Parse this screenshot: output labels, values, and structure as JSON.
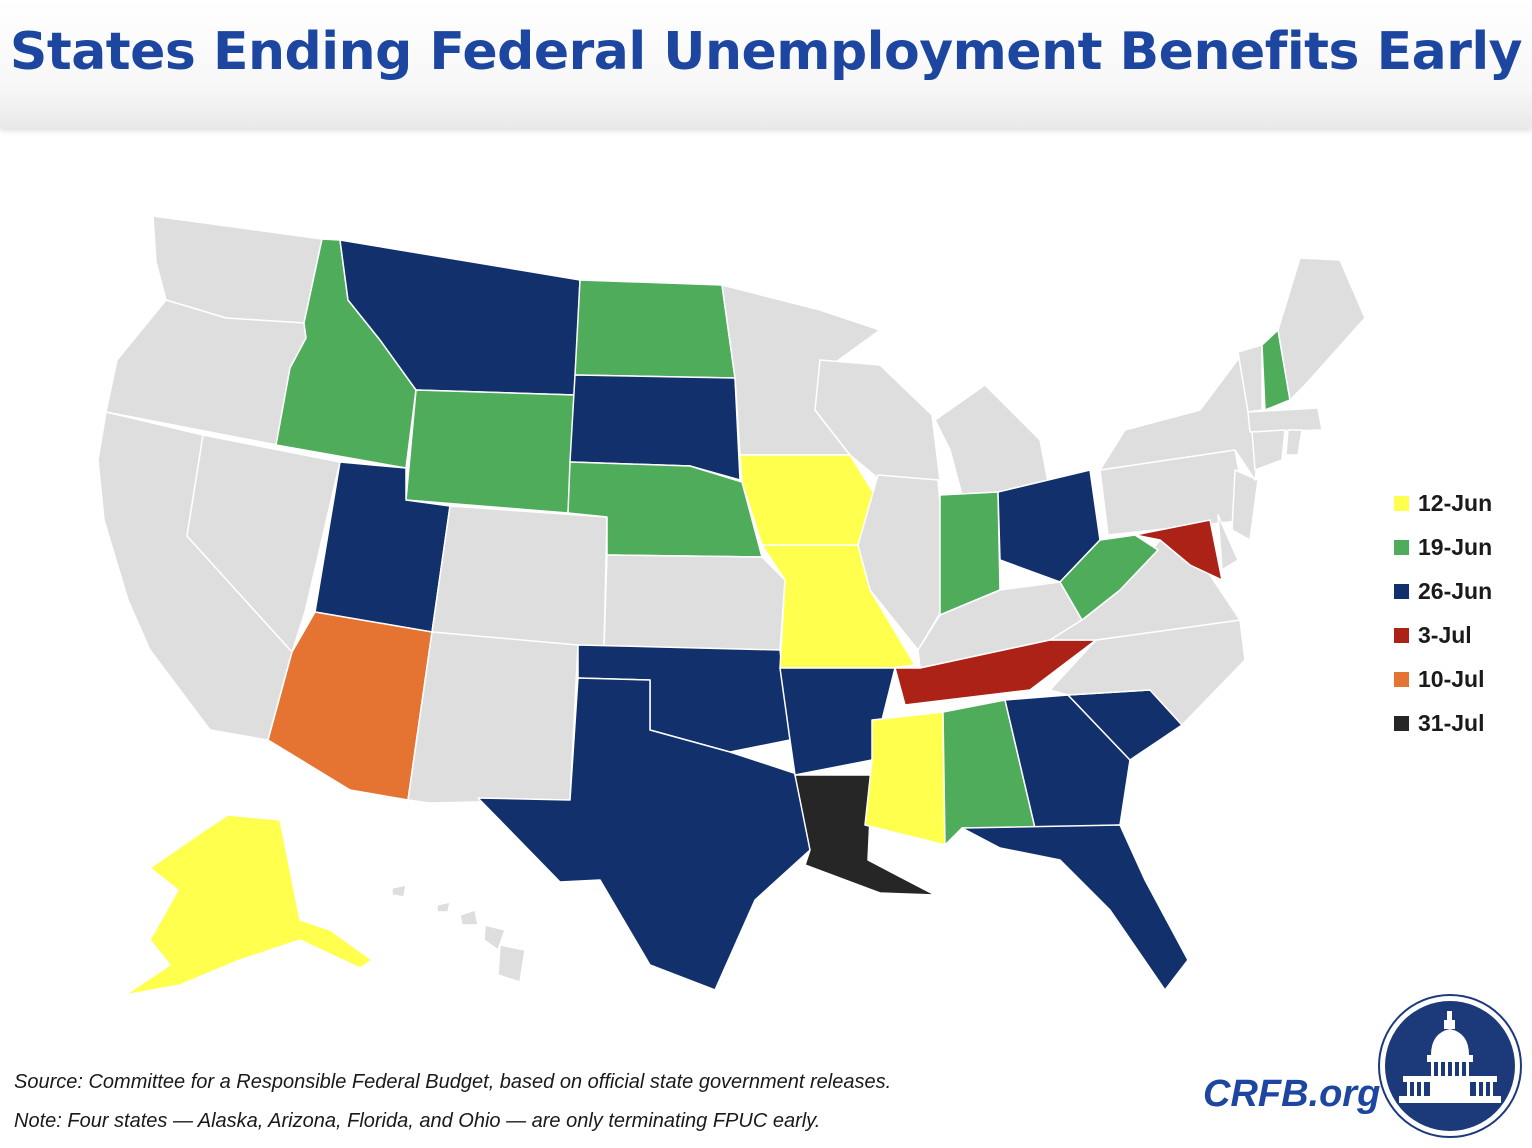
{
  "title": "States Ending Federal Unemployment Benefits Early",
  "legend": [
    {
      "label": "12-Jun",
      "color": "#ffff4d"
    },
    {
      "label": "19-Jun",
      "color": "#4fac5b"
    },
    {
      "label": "26-Jun",
      "color": "#12306b"
    },
    {
      "label": "3-Jul",
      "color": "#ad2217"
    },
    {
      "label": "10-Jul",
      "color": "#e57433"
    },
    {
      "label": "31-Jul",
      "color": "#262626"
    }
  ],
  "default_color": "#dedede",
  "state_groups": {
    "12-Jun": [
      "Alaska",
      "Iowa",
      "Missouri",
      "Mississippi"
    ],
    "19-Jun": [
      "Idaho",
      "Wyoming",
      "North Dakota",
      "Nebraska",
      "Indiana",
      "West Virginia",
      "Alabama",
      "New Hampshire"
    ],
    "26-Jun": [
      "Montana",
      "South Dakota",
      "Utah",
      "Ohio",
      "Oklahoma",
      "Arkansas",
      "Texas",
      "Georgia",
      "South Carolina",
      "Florida"
    ],
    "3-Jul": [
      "Tennessee",
      "Maryland"
    ],
    "10-Jul": [
      "Arizona"
    ],
    "31-Jul": [
      "Louisiana"
    ]
  },
  "source_note": "Source: Committee for a Responsible Federal Budget, based on official state government releases.",
  "fpuc_note": "Note: Four states — Alaska, Arizona, Florida, and Ohio — are only terminating FPUC early.",
  "brand": "CRFB.org",
  "logo_icon": "capitol-dome-icon"
}
